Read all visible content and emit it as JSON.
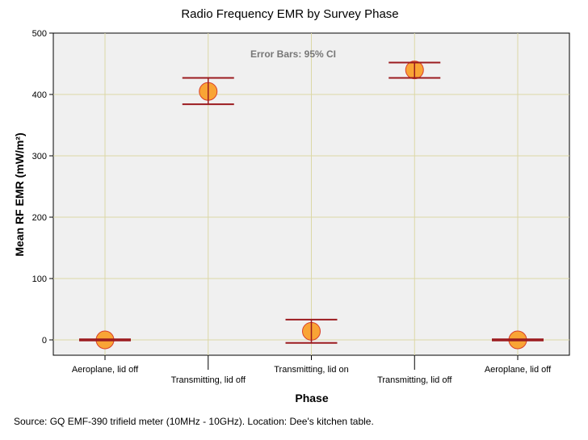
{
  "chart_data": {
    "type": "scatter",
    "title": "Radio Frequency EMR by Survey Phase",
    "xlabel": "Phase",
    "ylabel": "Mean RF EMR (mW/m²)",
    "categories": [
      "Aeroplane, lid off",
      "Transmitting, lid off",
      "Transmitting, lid on",
      "Transmitting, lid off",
      "Aeroplane, lid off"
    ],
    "values": [
      0,
      405,
      14,
      440,
      0
    ],
    "ci_lower": [
      -1,
      384,
      -5,
      427,
      -1
    ],
    "ci_upper": [
      1,
      427,
      33,
      452,
      1
    ],
    "ylim": [
      0,
      500
    ],
    "yticks": [
      "0",
      "100",
      "200",
      "300",
      "400",
      "500"
    ],
    "annotation": "Error Bars: 95% CI",
    "grid": true,
    "colors": {
      "marker_fill": "#F9A435",
      "marker_edge": "#D8402B",
      "error_bar": "#9B1B1F",
      "plot_background": "#F0F0F0",
      "grid": "#DCD7A6"
    }
  },
  "caption": "Source: GQ EMF-390 trifield meter (10MHz - 10GHz). Location: Dee's kitchen table."
}
